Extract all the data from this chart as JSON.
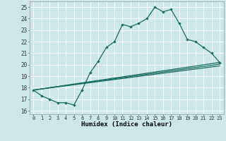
{
  "xlabel": "Humidex (Indice chaleur)",
  "ylabel": "",
  "bg_color": "#cce8e8",
  "grid_color": "#ffffff",
  "line_color": "#1a6b60",
  "xlim": [
    -0.5,
    23.5
  ],
  "ylim": [
    15.7,
    25.5
  ],
  "xticks": [
    0,
    1,
    2,
    3,
    4,
    5,
    6,
    7,
    8,
    9,
    10,
    11,
    12,
    13,
    14,
    15,
    16,
    17,
    18,
    19,
    20,
    21,
    22,
    23
  ],
  "yticks": [
    16,
    17,
    18,
    19,
    20,
    21,
    22,
    23,
    24,
    25
  ],
  "main_x": [
    0,
    1,
    2,
    3,
    4,
    5,
    6,
    7,
    8,
    9,
    10,
    11,
    12,
    13,
    14,
    15,
    16,
    17,
    18,
    19,
    20,
    21,
    22,
    23
  ],
  "main_y": [
    17.8,
    17.3,
    17.0,
    16.7,
    16.7,
    16.5,
    17.8,
    19.3,
    20.3,
    21.5,
    22.0,
    23.5,
    23.3,
    23.6,
    24.0,
    25.0,
    24.6,
    24.8,
    23.6,
    22.2,
    22.0,
    21.5,
    21.0,
    20.2
  ],
  "line2_x": [
    0,
    23
  ],
  "line2_y": [
    17.8,
    20.2
  ],
  "line3_x": [
    0,
    23
  ],
  "line3_y": [
    17.8,
    19.9
  ],
  "line4_x": [
    0,
    23
  ],
  "line4_y": [
    17.8,
    20.05
  ]
}
